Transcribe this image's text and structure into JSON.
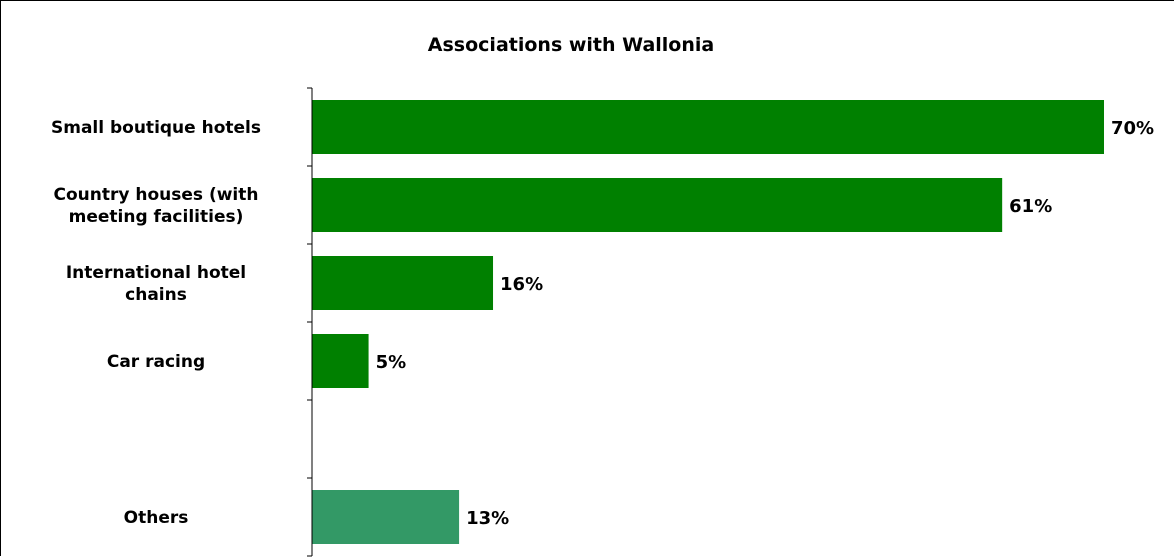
{
  "chart_data": {
    "type": "bar",
    "orientation": "horizontal",
    "title": "Associations with Wallonia",
    "xlabel": "",
    "ylabel": "",
    "xlim": [
      0,
      70
    ],
    "grid": false,
    "legend": "none",
    "value_suffix": "%",
    "categories": [
      [
        "Small boutique hotels"
      ],
      [
        "Country houses (with",
        "meeting facilities)"
      ],
      [
        "International hotel",
        "chains"
      ],
      [
        "Car racing"
      ],
      [
        ""
      ],
      [
        "Others"
      ]
    ],
    "values": [
      70,
      61,
      16,
      5,
      null,
      13
    ],
    "data_labels": [
      "70%",
      "61%",
      "16%",
      "5%",
      "",
      "13%"
    ],
    "bar_colors": [
      "#008000",
      "#008000",
      "#008000",
      "#008000",
      "#008000",
      "#339966"
    ]
  }
}
